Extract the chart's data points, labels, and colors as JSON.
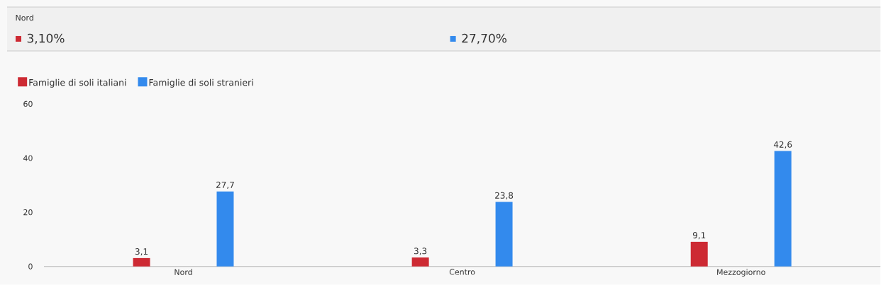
{
  "chart_data": {
    "type": "bar",
    "categories": [
      "Nord",
      "Centro",
      "Mezzogiorno"
    ],
    "series": [
      {
        "name": "Famiglie di soli italiani",
        "color": "#cd2a33",
        "values": [
          3.1,
          3.3,
          9.1
        ],
        "value_labels": [
          "3,1",
          "3,3",
          "9,1"
        ]
      },
      {
        "name": "Famiglie di soli stranieri",
        "color": "#338aed",
        "values": [
          27.7,
          23.8,
          42.6
        ],
        "value_labels": [
          "27,7",
          "23,8",
          "42,6"
        ]
      }
    ],
    "ylim": [
      0,
      60
    ],
    "yticks": [
      0,
      20,
      40,
      60
    ],
    "grid": false,
    "legend": "top left",
    "annotations": [
      "Nord",
      "3,10%",
      "27,70%"
    ]
  }
}
